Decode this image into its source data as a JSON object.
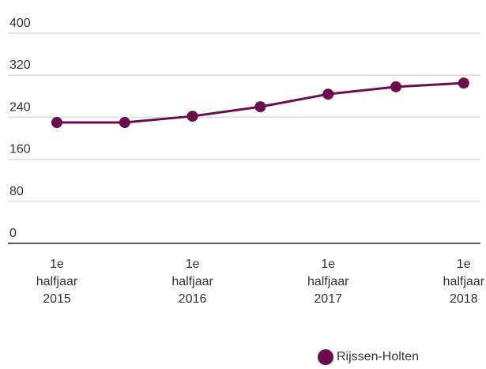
{
  "chart_data": {
    "type": "line",
    "categories": [
      "1e halfjaar 2015",
      null,
      "1e halfjaar 2016",
      null,
      "1e halfjaar 2017",
      null,
      "1e halfjaar 2018"
    ],
    "series": [
      {
        "name": "Rijssen-Holten",
        "color": "#6b0d4f",
        "values": [
          230,
          230,
          242,
          260,
          284,
          298,
          305
        ]
      }
    ],
    "ylim": [
      0,
      400
    ],
    "yticks": [
      0,
      80,
      160,
      240,
      320,
      400
    ],
    "grid": true,
    "legend": "bottom-right"
  }
}
